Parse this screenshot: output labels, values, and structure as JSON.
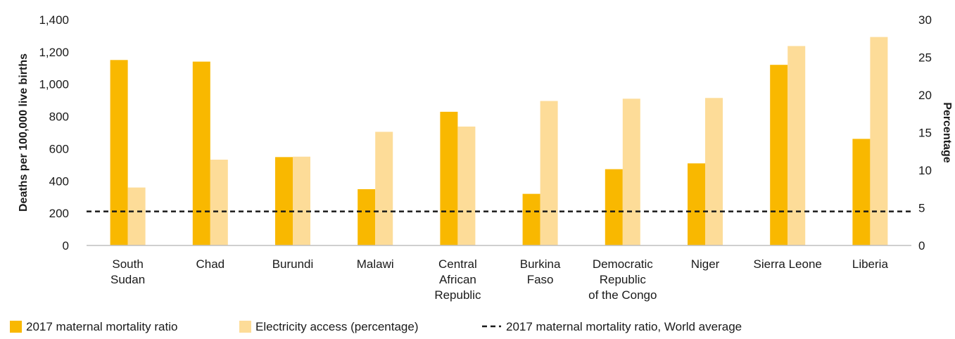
{
  "chart_data": {
    "type": "bar",
    "categories": [
      [
        "South",
        "Sudan"
      ],
      [
        "Chad"
      ],
      [
        "Burundi"
      ],
      [
        "Malawi"
      ],
      [
        "Central",
        "African",
        "Republic"
      ],
      [
        "Burkina",
        "Faso"
      ],
      [
        "Democratic",
        "Republic",
        "of the Congo"
      ],
      [
        "Niger"
      ],
      [
        "Sierra Leone"
      ],
      [
        "Liberia"
      ]
    ],
    "series": [
      {
        "name": "2017 maternal mortality ratio",
        "axis": "left",
        "color": "#F9B800",
        "values": [
          1150,
          1140,
          548,
          349,
          829,
          320,
          473,
          509,
          1120,
          661
        ]
      },
      {
        "name": "Electricity access (percentage)",
        "axis": "right",
        "color": "#FDDC98",
        "values": [
          7.7,
          11.4,
          11.8,
          15.1,
          15.8,
          19.2,
          19.5,
          19.6,
          26.5,
          27.7
        ]
      }
    ],
    "reference_line": {
      "name": "2017 maternal mortality ratio, World average",
      "value": 211,
      "axis": "left",
      "color": "#1a1a1a",
      "style": "dashed"
    },
    "y_left": {
      "label": "Deaths per 100,000 live births",
      "ylim": [
        0,
        1400
      ],
      "ticks": [
        0,
        200,
        400,
        600,
        800,
        1000,
        1200,
        1400
      ],
      "tick_labels": [
        "0",
        "200",
        "400",
        "600",
        "800",
        "1,000",
        "1,200",
        "1,400"
      ]
    },
    "y_right": {
      "label": "Percentage",
      "ylim": [
        0,
        30
      ],
      "ticks": [
        0,
        5,
        10,
        15,
        20,
        25,
        30
      ],
      "tick_labels": [
        "0",
        "5",
        "10",
        "15",
        "20",
        "25",
        "30"
      ]
    },
    "grid": false,
    "legend_position": "bottom-left",
    "title": ""
  }
}
